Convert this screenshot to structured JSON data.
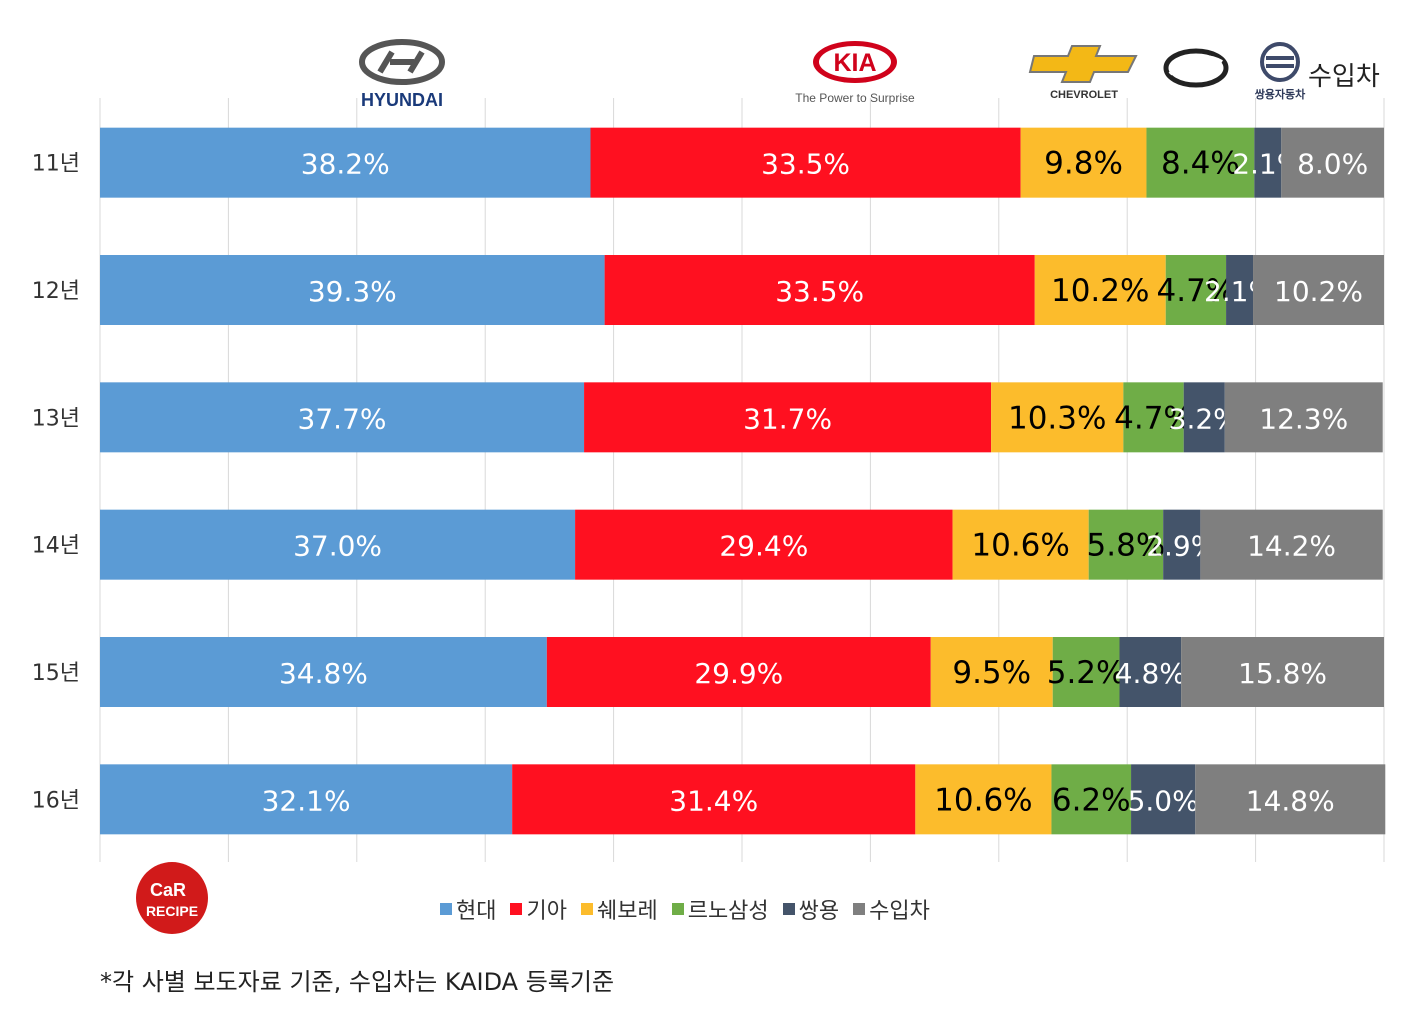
{
  "chart_data": {
    "type": "bar",
    "orientation": "horizontal",
    "stacked": true,
    "title": "",
    "xlabel": "",
    "ylabel": "",
    "xlim": [
      0,
      100
    ],
    "grid": true,
    "legend_position": "bottom",
    "categories": [
      "11년",
      "12년",
      "13년",
      "14년",
      "15년",
      "16년"
    ],
    "series": [
      {
        "name": "현대",
        "color": "#5b9bd5",
        "label_color": "#ffffff",
        "values": [
          38.2,
          39.3,
          37.7,
          37.0,
          34.8,
          32.1
        ],
        "labels": [
          "38.2%",
          "39.3%",
          "37.7%",
          "37.0%",
          "34.8%",
          "32.1%"
        ]
      },
      {
        "name": "기아",
        "color": "#ff1020",
        "label_color": "#ffffff",
        "values": [
          33.5,
          33.5,
          31.7,
          29.4,
          29.9,
          31.4
        ],
        "labels": [
          "33.5%",
          "33.5%",
          "31.7%",
          "29.4%",
          "29.9%",
          "31.4%"
        ]
      },
      {
        "name": "쉐보레",
        "color": "#fcbc2c",
        "label_color": "#000000",
        "values": [
          9.8,
          10.2,
          10.3,
          10.6,
          9.5,
          10.6
        ],
        "labels": [
          "9.8%",
          "10.2%",
          "10.3%",
          "10.6%",
          "9.5%",
          "10.6%"
        ]
      },
      {
        "name": "르노삼성",
        "color": "#6fad47",
        "label_color": "#000000",
        "values": [
          8.4,
          4.7,
          4.7,
          5.8,
          5.2,
          6.2
        ],
        "labels": [
          "8.4%",
          "4.7%",
          "4.7%",
          "5.8%",
          "5.2%",
          "6.2%"
        ]
      },
      {
        "name": "쌍용",
        "color": "#44546a",
        "label_color": "#ffffff",
        "values": [
          2.1,
          2.1,
          3.2,
          2.9,
          4.8,
          5.0
        ],
        "labels": [
          "2.1%",
          "2.1%",
          "3.2%",
          "2.9%",
          "4.8%",
          "5.0%"
        ]
      },
      {
        "name": "수입차",
        "color": "#7f7f7f",
        "label_color": "#ffffff",
        "values": [
          8.0,
          10.2,
          12.3,
          14.2,
          15.8,
          14.8
        ],
        "labels": [
          "8.0%",
          "10.2%",
          "12.3%",
          "14.2%",
          "15.8%",
          "14.8%"
        ]
      }
    ]
  },
  "logos": {
    "hyundai": "HYUNDAI",
    "kia": "KIA",
    "kia_tagline": "The Power to Surprise",
    "chevrolet": "CHEVROLET",
    "ssangyong": "쌍용자동차",
    "imports_label": "수입차",
    "car_recipe_line1": "CaR",
    "car_recipe_line2": "RECIPE"
  },
  "footnote": "*각 사별 보도자료 기준, 수입차는 KAIDA 등록기준"
}
